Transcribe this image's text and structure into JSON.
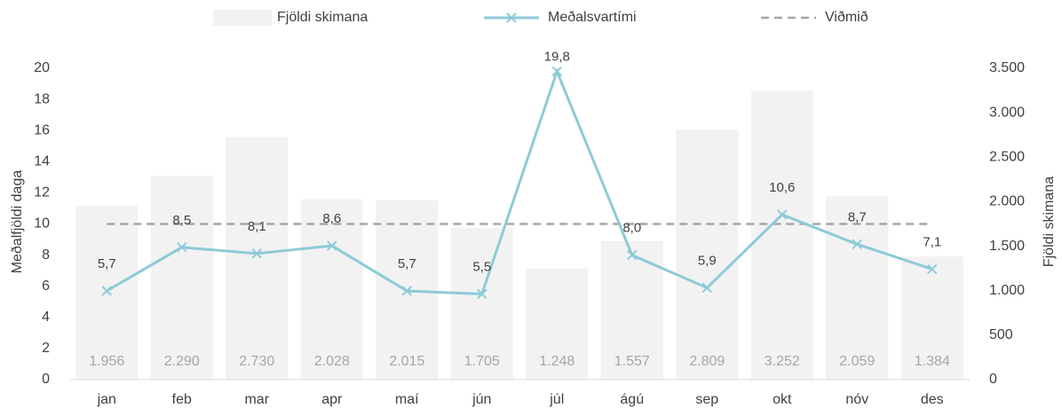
{
  "chart_data": {
    "type": "combo",
    "categories": [
      "jan",
      "feb",
      "mar",
      "apr",
      "maí",
      "jún",
      "júl",
      "ágú",
      "sep",
      "okt",
      "nóv",
      "des"
    ],
    "series": [
      {
        "name": "Fjöldi skimana",
        "type": "bar",
        "axis": "y2",
        "color": "#f2f2f2",
        "values": [
          1956,
          2290,
          2730,
          2028,
          2015,
          1705,
          1248,
          1557,
          2809,
          3252,
          2059,
          1384
        ],
        "value_labels": [
          "1.956",
          "2.290",
          "2.730",
          "2.028",
          "2.015",
          "1.705",
          "1.248",
          "1.557",
          "2.809",
          "3.252",
          "2.059",
          "1.384"
        ]
      },
      {
        "name": "Meðalsvartími",
        "type": "line",
        "axis": "y",
        "color": "#8ecad8",
        "marker": "x",
        "values": [
          5.7,
          8.5,
          8.1,
          8.6,
          5.7,
          5.5,
          19.8,
          8.0,
          5.9,
          10.6,
          8.7,
          7.1
        ],
        "value_labels": [
          "5,7",
          "8,5",
          "8,1",
          "8,6",
          "5,7",
          "5,5",
          "19,8",
          "8,0",
          "5,9",
          "10,6",
          "8,7",
          "7,1"
        ]
      },
      {
        "name": "Viðmið",
        "type": "line",
        "axis": "y",
        "color": "#a6a6a6",
        "dash": true,
        "values": [
          10,
          10,
          10,
          10,
          10,
          10,
          10,
          10,
          10,
          10,
          10,
          10
        ]
      }
    ],
    "ylabel": "Meðalfjöldi daga",
    "y2label": "Fjöldi skimana",
    "ylim": [
      0,
      20
    ],
    "yticks": [
      0,
      2,
      4,
      6,
      8,
      10,
      12,
      14,
      16,
      18,
      20
    ],
    "y2lim": [
      0,
      3500
    ],
    "y2ticks": [
      0,
      500,
      {
        "value": 1000,
        "label": "1.000"
      },
      {
        "value": 1500,
        "label": "1.500"
      },
      {
        "value": 2000,
        "label": "2.000"
      },
      {
        "value": 2500,
        "label": "2.500"
      },
      {
        "value": 3000,
        "label": "3.000"
      },
      {
        "value": 3500,
        "label": "3.500"
      }
    ],
    "legend": "top"
  }
}
